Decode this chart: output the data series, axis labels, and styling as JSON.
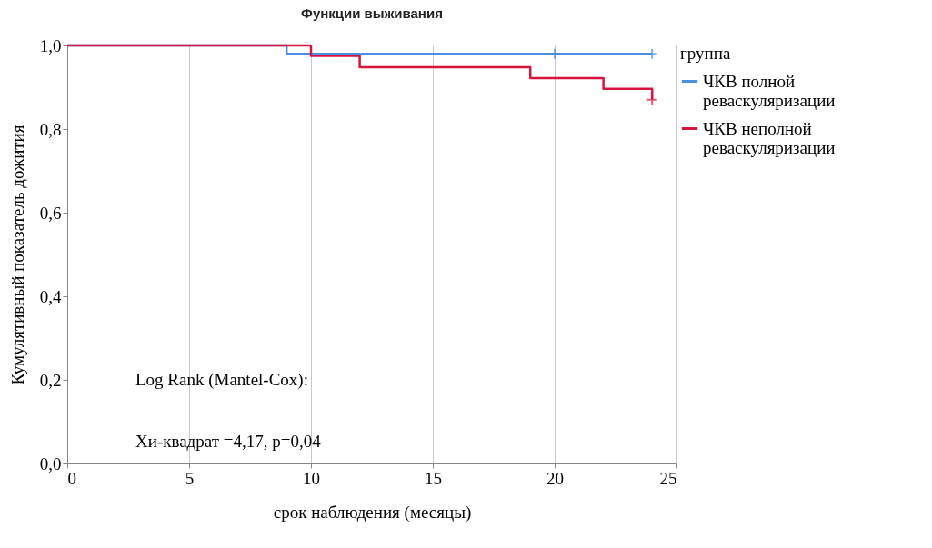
{
  "chart_data": {
    "type": "step",
    "title": "Функции выживания",
    "xlabel": "срок наблюдения (месяцы)",
    "ylabel": "Кумулятивный показатель дожития",
    "legend_title": "группа",
    "legend": "right",
    "grid": "x",
    "xlim": [
      0,
      25
    ],
    "xticks": [
      0,
      5,
      10,
      15,
      20,
      25
    ],
    "ylim": [
      0,
      1
    ],
    "yticks": [
      {
        "value": 0,
        "label": "0,0"
      },
      {
        "value": 0.2,
        "label": "0,2"
      },
      {
        "value": 0.4,
        "label": "0,4"
      },
      {
        "value": 0.6,
        "label": "0,6"
      },
      {
        "value": 0.8,
        "label": "0,8"
      },
      {
        "value": 1,
        "label": "1,0"
      }
    ],
    "series": [
      {
        "name": "ЧКВ полной реваскуляризации",
        "color": "#4a8fe0",
        "x": [
          0,
          9,
          24
        ],
        "values": [
          1,
          0.98,
          0.98
        ]
      },
      {
        "name": "ЧКВ неполной реваскуляризации",
        "color": "#d7153f",
        "x": [
          0,
          10,
          12,
          19,
          22,
          24
        ],
        "values": [
          1,
          0.975,
          0.948,
          0.922,
          0.896,
          0.87
        ]
      },
      {
        "type": "scatter",
        "marker": "cross",
        "color": "#4a8fe0",
        "x": [
          20,
          24
        ],
        "values": [
          0.98,
          0.98
        ]
      },
      {
        "type": "scatter",
        "marker": "cross",
        "color": "#d7153f",
        "x": [
          24
        ],
        "values": [
          0.87
        ]
      }
    ],
    "annotations": [
      "Log Rank (Mantel-Cox):",
      "Хи-квадрат =4,17, p=0,04"
    ]
  }
}
